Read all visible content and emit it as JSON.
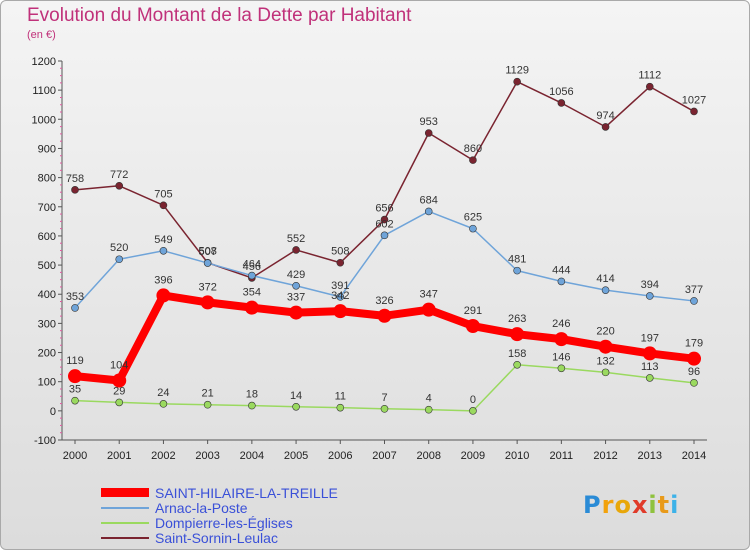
{
  "header": {
    "title": "Evolution du Montant de la Dette par Habitant",
    "subtitle": "(en €)"
  },
  "brand": {
    "letters": [
      "P",
      "r",
      "o",
      "x",
      "i",
      "t",
      "i"
    ],
    "colors": [
      "#2a8bd6",
      "#f2a20c",
      "#e8a70a",
      "#e03b2a",
      "#8fc23e",
      "#e89a1a",
      "#3db2e8"
    ]
  },
  "chart_data": {
    "type": "line",
    "title": "Evolution du Montant de la Dette par Habitant",
    "ylabel": "(en €)",
    "x": [
      2000,
      2001,
      2002,
      2003,
      2004,
      2005,
      2006,
      2007,
      2008,
      2009,
      2010,
      2011,
      2012,
      2013,
      2014
    ],
    "ylim": [
      -100,
      1200
    ],
    "yticks": [
      -100,
      0,
      100,
      200,
      300,
      400,
      500,
      600,
      700,
      800,
      900,
      1000,
      1100,
      1200
    ],
    "grid": false,
    "legend_position": "bottom",
    "series": [
      {
        "name": "SAINT-HILAIRE-LA-TREILLE",
        "color": "#ff0000",
        "width": 8,
        "marker": 7,
        "values": [
          119,
          104,
          396,
          372,
          354,
          337,
          342,
          326,
          347,
          291,
          263,
          246,
          220,
          197,
          179
        ]
      },
      {
        "name": "Arnac-la-Poste",
        "color": "#6fa4d9",
        "width": 1.5,
        "marker": 3.5,
        "values": [
          353,
          520,
          549,
          507,
          464,
          429,
          391,
          602,
          684,
          625,
          481,
          444,
          414,
          394,
          377
        ]
      },
      {
        "name": "Dompierre-les-Églises",
        "color": "#9ad95f",
        "width": 1.5,
        "marker": 3.5,
        "values": [
          35,
          29,
          24,
          21,
          18,
          14,
          11,
          7,
          4,
          0,
          158,
          146,
          132,
          113,
          96
        ]
      },
      {
        "name": "Saint-Sornin-Leulac",
        "color": "#7a2430",
        "width": 1.5,
        "marker": 3.5,
        "values": [
          758,
          772,
          705,
          508,
          456,
          552,
          508,
          656,
          953,
          860,
          1129,
          1056,
          974,
          1112,
          1027
        ]
      }
    ]
  }
}
